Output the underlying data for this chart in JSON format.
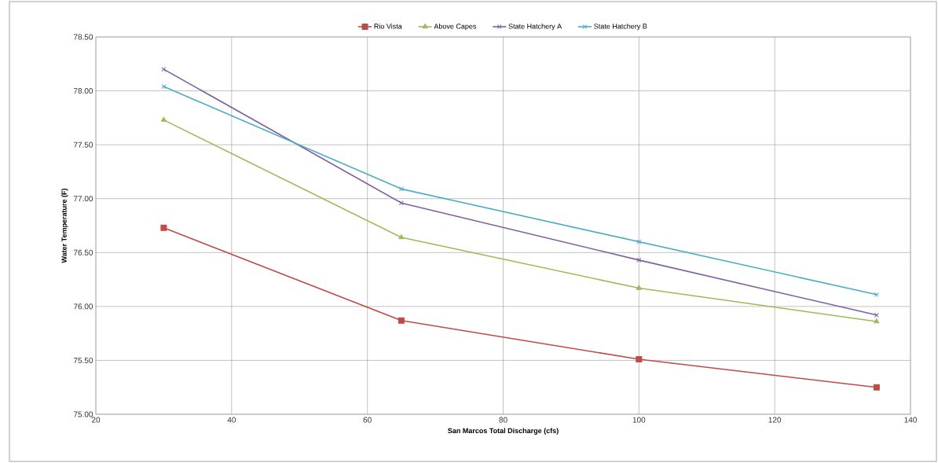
{
  "chart_data": {
    "type": "line",
    "xlabel": "San Marcos Total Discharge (cfs)",
    "ylabel": "Water Temperature (F)",
    "x": [
      30,
      65,
      100,
      135
    ],
    "series": [
      {
        "name": "Rio Vista",
        "color": "#be4b48",
        "marker": "square",
        "values": [
          76.73,
          75.87,
          75.51,
          75.25
        ]
      },
      {
        "name": "Above Capes",
        "color": "#9bbb59",
        "marker": "triangle",
        "values": [
          77.73,
          76.64,
          76.17,
          75.86
        ]
      },
      {
        "name": "State Hatchery A",
        "color": "#7f5fa0",
        "marker": "cross",
        "values": [
          78.2,
          76.96,
          76.43,
          75.92
        ]
      },
      {
        "name": "State Hatchery B",
        "color": "#4bacc6",
        "marker": "cross",
        "values": [
          78.04,
          77.09,
          76.6,
          76.11
        ]
      }
    ],
    "xlim": [
      20,
      140
    ],
    "xticks": [
      20,
      40,
      60,
      80,
      100,
      120,
      140
    ],
    "ylim": [
      75.0,
      78.5
    ],
    "yticks": [
      {
        "value": 75.0,
        "label": "75.00"
      },
      {
        "value": 75.5,
        "label": "75.50"
      },
      {
        "value": 76.0,
        "label": "76.00"
      },
      {
        "value": 76.5,
        "label": "76.50"
      },
      {
        "value": 77.0,
        "label": "77.00"
      },
      {
        "value": 77.5,
        "label": "77.50"
      },
      {
        "value": 78.0,
        "label": "78.00"
      },
      {
        "value": 78.5,
        "label": "78.50"
      }
    ],
    "grid": true,
    "legend": "top"
  }
}
